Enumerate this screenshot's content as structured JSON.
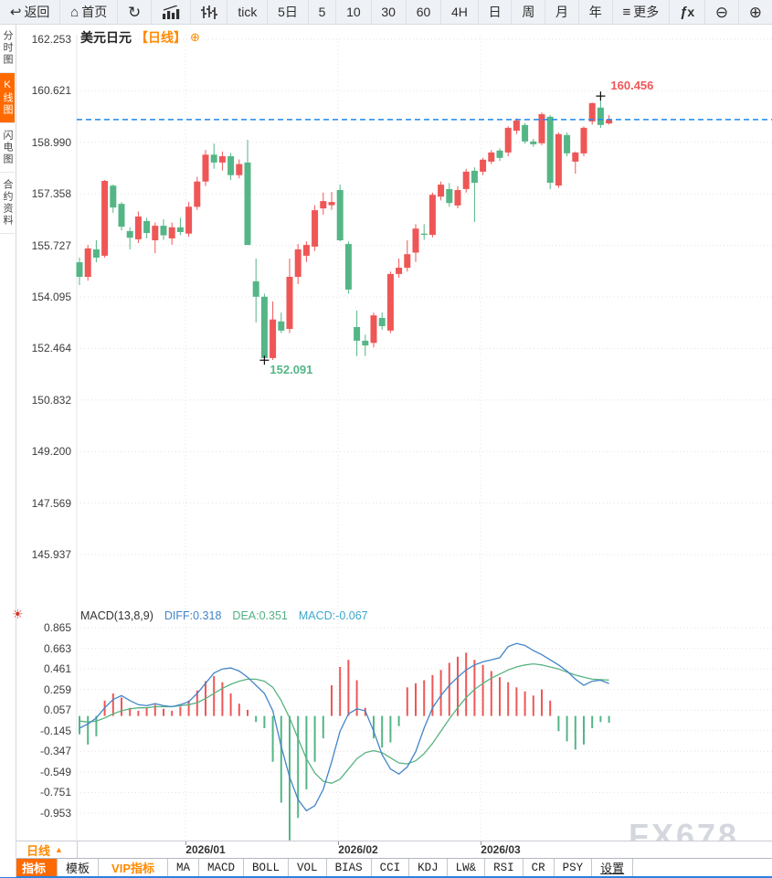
{
  "toolbar": {
    "items": [
      {
        "name": "back",
        "icon": "back",
        "label": "返回"
      },
      {
        "name": "home",
        "icon": "home",
        "label": "首页"
      },
      {
        "name": "refresh",
        "icon": "refresh",
        "label": ""
      },
      {
        "name": "line-chart",
        "icon": "bar-chart",
        "label": ""
      },
      {
        "name": "candlestick",
        "icon": "ohlc",
        "label": ""
      },
      {
        "name": "tick",
        "label": "tick"
      },
      {
        "name": "period-5d",
        "label": "5日"
      },
      {
        "name": "period-5",
        "label": "5"
      },
      {
        "name": "period-10",
        "label": "10"
      },
      {
        "name": "period-30",
        "label": "30"
      },
      {
        "name": "period-60",
        "label": "60"
      },
      {
        "name": "period-4h",
        "label": "4H"
      },
      {
        "name": "period-day",
        "label": "日"
      },
      {
        "name": "period-week",
        "label": "周"
      },
      {
        "name": "period-month",
        "label": "月"
      },
      {
        "name": "period-year",
        "label": "年"
      },
      {
        "name": "more",
        "icon": "menu",
        "label": "更多"
      },
      {
        "name": "formula",
        "icon": "fx",
        "label": ""
      },
      {
        "name": "zoom-out",
        "icon": "zoom-out",
        "label": ""
      },
      {
        "name": "zoom-in",
        "icon": "zoom-in",
        "label": ""
      }
    ]
  },
  "icons": {
    "back": "↩",
    "home": "⌂",
    "refresh": "↻",
    "menu": "≡",
    "zoom_out": "⊖",
    "zoom_in": "⊕",
    "sun": "☀",
    "triangle_up": "▲",
    "circle_plus": "⊕",
    "fx_f": "ƒ",
    "fx_x": "x"
  },
  "sidebar": {
    "tabs": [
      {
        "label": "分时图",
        "active": false
      },
      {
        "label": "K线图",
        "active": true
      },
      {
        "label": "闪电图",
        "active": false
      },
      {
        "label": "合约资料",
        "active": false
      }
    ]
  },
  "chart": {
    "title": "美元日元",
    "period_tag": "【日线】"
  },
  "macd_header": {
    "name": "MACD(13,8,9)",
    "diff": "DIFF:0.318",
    "dea": "DEA:0.351",
    "macd": "MACD:-0.067"
  },
  "bottom": {
    "period_label": "日线",
    "watermark": "FX678",
    "tabs": [
      {
        "label": "指标",
        "active": true
      },
      {
        "label": "模板"
      },
      {
        "label": "VIP指标",
        "vip": true
      },
      {
        "label": "MA",
        "mono": true
      },
      {
        "label": "MACD",
        "mono": true
      },
      {
        "label": "BOLL",
        "mono": true
      },
      {
        "label": "VOL",
        "mono": true
      },
      {
        "label": "BIAS",
        "mono": true
      },
      {
        "label": "CCI",
        "mono": true
      },
      {
        "label": "KDJ",
        "mono": true
      },
      {
        "label": "LW&",
        "mono": true
      },
      {
        "label": "RSI",
        "mono": true
      },
      {
        "label": "CR",
        "mono": true
      },
      {
        "label": "PSY",
        "mono": true
      },
      {
        "label": "设置",
        "underline": true
      }
    ]
  },
  "chart_data": {
    "type": "candlestick",
    "symbol": "美元日元",
    "period": "日线",
    "price_axis_ticks": [
      162.253,
      160.621,
      158.99,
      157.358,
      155.727,
      154.095,
      152.464,
      150.832,
      149.2,
      147.569,
      145.937
    ],
    "macd_axis_ticks": [
      0.865,
      0.663,
      0.461,
      0.259,
      0.057,
      -0.145,
      -0.347,
      -0.549,
      -0.751,
      -0.953
    ],
    "x_tick_labels": [
      "2026/01",
      "2026/02",
      "2026/03"
    ],
    "last_price_line": 159.71,
    "annotations": {
      "high": {
        "index": 62,
        "value": 160.456
      },
      "low": {
        "index": 22,
        "value": 152.091
      }
    },
    "candles": [
      [
        155.19,
        155.34,
        154.47,
        154.73
      ],
      [
        154.73,
        155.74,
        154.61,
        155.63
      ],
      [
        155.6,
        155.89,
        155.19,
        155.34
      ],
      [
        155.4,
        157.8,
        155.34,
        157.77
      ],
      [
        157.62,
        157.65,
        156.76,
        156.93
      ],
      [
        157.04,
        157.1,
        156.2,
        156.32
      ],
      [
        156.18,
        156.3,
        155.6,
        155.97
      ],
      [
        155.92,
        156.8,
        155.8,
        156.64
      ],
      [
        156.5,
        156.6,
        155.95,
        156.12
      ],
      [
        155.89,
        156.45,
        155.48,
        156.35
      ],
      [
        156.35,
        156.55,
        155.9,
        156.05
      ],
      [
        155.95,
        156.45,
        155.75,
        156.3
      ],
      [
        156.3,
        156.6,
        156.05,
        156.15
      ],
      [
        156.1,
        157.1,
        156.0,
        156.95
      ],
      [
        156.95,
        157.9,
        156.85,
        157.75
      ],
      [
        157.75,
        158.75,
        157.6,
        158.6
      ],
      [
        158.6,
        158.95,
        158.15,
        158.35
      ],
      [
        158.35,
        158.7,
        158.1,
        158.55
      ],
      [
        158.55,
        158.65,
        157.8,
        157.95
      ],
      [
        157.95,
        158.45,
        157.85,
        158.3
      ],
      [
        158.35,
        159.07,
        155.74,
        155.74
      ],
      [
        154.59,
        155.31,
        153.29,
        154.1
      ],
      [
        154.1,
        154.2,
        152.091,
        152.16
      ],
      [
        152.16,
        153.95,
        152.1,
        153.38
      ],
      [
        153.32,
        153.6,
        152.95,
        153.03
      ],
      [
        153.08,
        155.31,
        152.95,
        154.73
      ],
      [
        154.73,
        155.77,
        154.5,
        155.6
      ],
      [
        155.4,
        155.85,
        155.2,
        155.74
      ],
      [
        155.69,
        157.0,
        155.55,
        156.84
      ],
      [
        156.9,
        157.4,
        156.7,
        157.13
      ],
      [
        157.0,
        157.42,
        156.85,
        157.1
      ],
      [
        157.48,
        157.65,
        155.85,
        155.89
      ],
      [
        155.77,
        155.85,
        154.2,
        154.33
      ],
      [
        153.14,
        153.66,
        152.22,
        152.71
      ],
      [
        152.71,
        152.9,
        152.22,
        152.56
      ],
      [
        152.64,
        153.6,
        152.5,
        153.51
      ],
      [
        153.43,
        153.6,
        153.05,
        153.17
      ],
      [
        153.03,
        154.9,
        152.95,
        154.82
      ],
      [
        154.82,
        155.31,
        154.7,
        155.02
      ],
      [
        155.02,
        155.89,
        154.9,
        155.45
      ],
      [
        155.5,
        156.4,
        155.2,
        156.26
      ],
      [
        156.1,
        156.4,
        155.9,
        156.06
      ],
      [
        156.06,
        157.4,
        155.98,
        157.33
      ],
      [
        157.27,
        157.75,
        157.15,
        157.65
      ],
      [
        157.51,
        157.7,
        156.95,
        157.07
      ],
      [
        156.99,
        157.6,
        156.9,
        157.48
      ],
      [
        157.51,
        158.15,
        157.4,
        158.06
      ],
      [
        158.09,
        158.2,
        156.47,
        157.71
      ],
      [
        158.06,
        158.5,
        157.95,
        158.44
      ],
      [
        158.38,
        158.75,
        158.3,
        158.67
      ],
      [
        158.73,
        158.8,
        158.4,
        158.5
      ],
      [
        158.67,
        159.5,
        158.55,
        159.45
      ],
      [
        159.36,
        159.75,
        159.25,
        159.68
      ],
      [
        159.54,
        159.6,
        158.95,
        159.02
      ],
      [
        159.02,
        159.1,
        158.85,
        158.93
      ],
      [
        158.96,
        159.94,
        158.9,
        159.88
      ],
      [
        159.8,
        159.85,
        157.51,
        157.71
      ],
      [
        157.62,
        159.3,
        157.55,
        159.25
      ],
      [
        159.22,
        159.3,
        158.55,
        158.64
      ],
      [
        158.38,
        158.7,
        158.0,
        158.67
      ],
      [
        158.64,
        159.5,
        158.55,
        159.45
      ],
      [
        159.65,
        160.25,
        159.55,
        160.23
      ],
      [
        160.09,
        160.456,
        159.45,
        159.54
      ],
      [
        159.59,
        159.85,
        159.55,
        159.7
      ]
    ],
    "macd": {
      "params": "13,8,9",
      "diff": [
        -0.12,
        -0.08,
        -0.02,
        0.08,
        0.16,
        0.2,
        0.15,
        0.11,
        0.1,
        0.12,
        0.1,
        0.09,
        0.11,
        0.14,
        0.22,
        0.32,
        0.42,
        0.46,
        0.47,
        0.44,
        0.38,
        0.3,
        0.22,
        0.05,
        -0.3,
        -0.6,
        -0.82,
        -0.93,
        -0.88,
        -0.72,
        -0.45,
        -0.15,
        0.02,
        0.07,
        0.05,
        -0.15,
        -0.38,
        -0.52,
        -0.57,
        -0.5,
        -0.35,
        -0.12,
        0.08,
        0.2,
        0.3,
        0.38,
        0.45,
        0.5,
        0.53,
        0.55,
        0.57,
        0.68,
        0.71,
        0.69,
        0.64,
        0.6,
        0.55,
        0.5,
        0.44,
        0.36,
        0.3,
        0.34,
        0.35,
        0.318
      ],
      "dea": [
        -0.05,
        -0.06,
        -0.05,
        -0.02,
        0.02,
        0.05,
        0.07,
        0.08,
        0.08,
        0.09,
        0.09,
        0.09,
        0.1,
        0.11,
        0.13,
        0.17,
        0.22,
        0.27,
        0.31,
        0.34,
        0.36,
        0.36,
        0.34,
        0.28,
        0.15,
        -0.02,
        -0.22,
        -0.42,
        -0.56,
        -0.64,
        -0.66,
        -0.62,
        -0.52,
        -0.42,
        -0.36,
        -0.34,
        -0.36,
        -0.41,
        -0.46,
        -0.47,
        -0.44,
        -0.37,
        -0.27,
        -0.15,
        -0.03,
        0.08,
        0.18,
        0.26,
        0.32,
        0.37,
        0.41,
        0.45,
        0.48,
        0.5,
        0.51,
        0.5,
        0.48,
        0.46,
        0.43,
        0.4,
        0.38,
        0.36,
        0.355,
        0.351
      ],
      "hist": [
        -0.18,
        -0.28,
        -0.2,
        0.15,
        0.22,
        0.18,
        0.08,
        0.05,
        0.08,
        0.11,
        0.07,
        0.05,
        0.09,
        0.15,
        0.25,
        0.34,
        0.39,
        0.33,
        0.22,
        0.12,
        0.06,
        -0.06,
        -0.12,
        -0.45,
        -0.85,
        -1.22,
        -1.0,
        -0.72,
        -0.45,
        -0.22,
        0.3,
        0.48,
        0.55,
        0.35,
        0.08,
        -0.22,
        -0.31,
        -0.26,
        -0.1,
        0.28,
        0.32,
        0.35,
        0.4,
        0.45,
        0.52,
        0.58,
        0.62,
        0.55,
        0.5,
        0.44,
        0.38,
        0.33,
        0.28,
        0.24,
        0.2,
        0.26,
        0.15,
        -0.15,
        -0.25,
        -0.33,
        -0.28,
        -0.12,
        -0.06,
        -0.067
      ]
    },
    "colors": {
      "up": "#ef5656",
      "down": "#54b686",
      "diff_line": "#4285c6",
      "dea_line": "#58b380",
      "price_line": "#1e88f0",
      "grid": "#ecdede",
      "vgrid": "#dfe4eb",
      "annotation_high": "#ef5656",
      "annotation_low": "#54b686"
    }
  }
}
